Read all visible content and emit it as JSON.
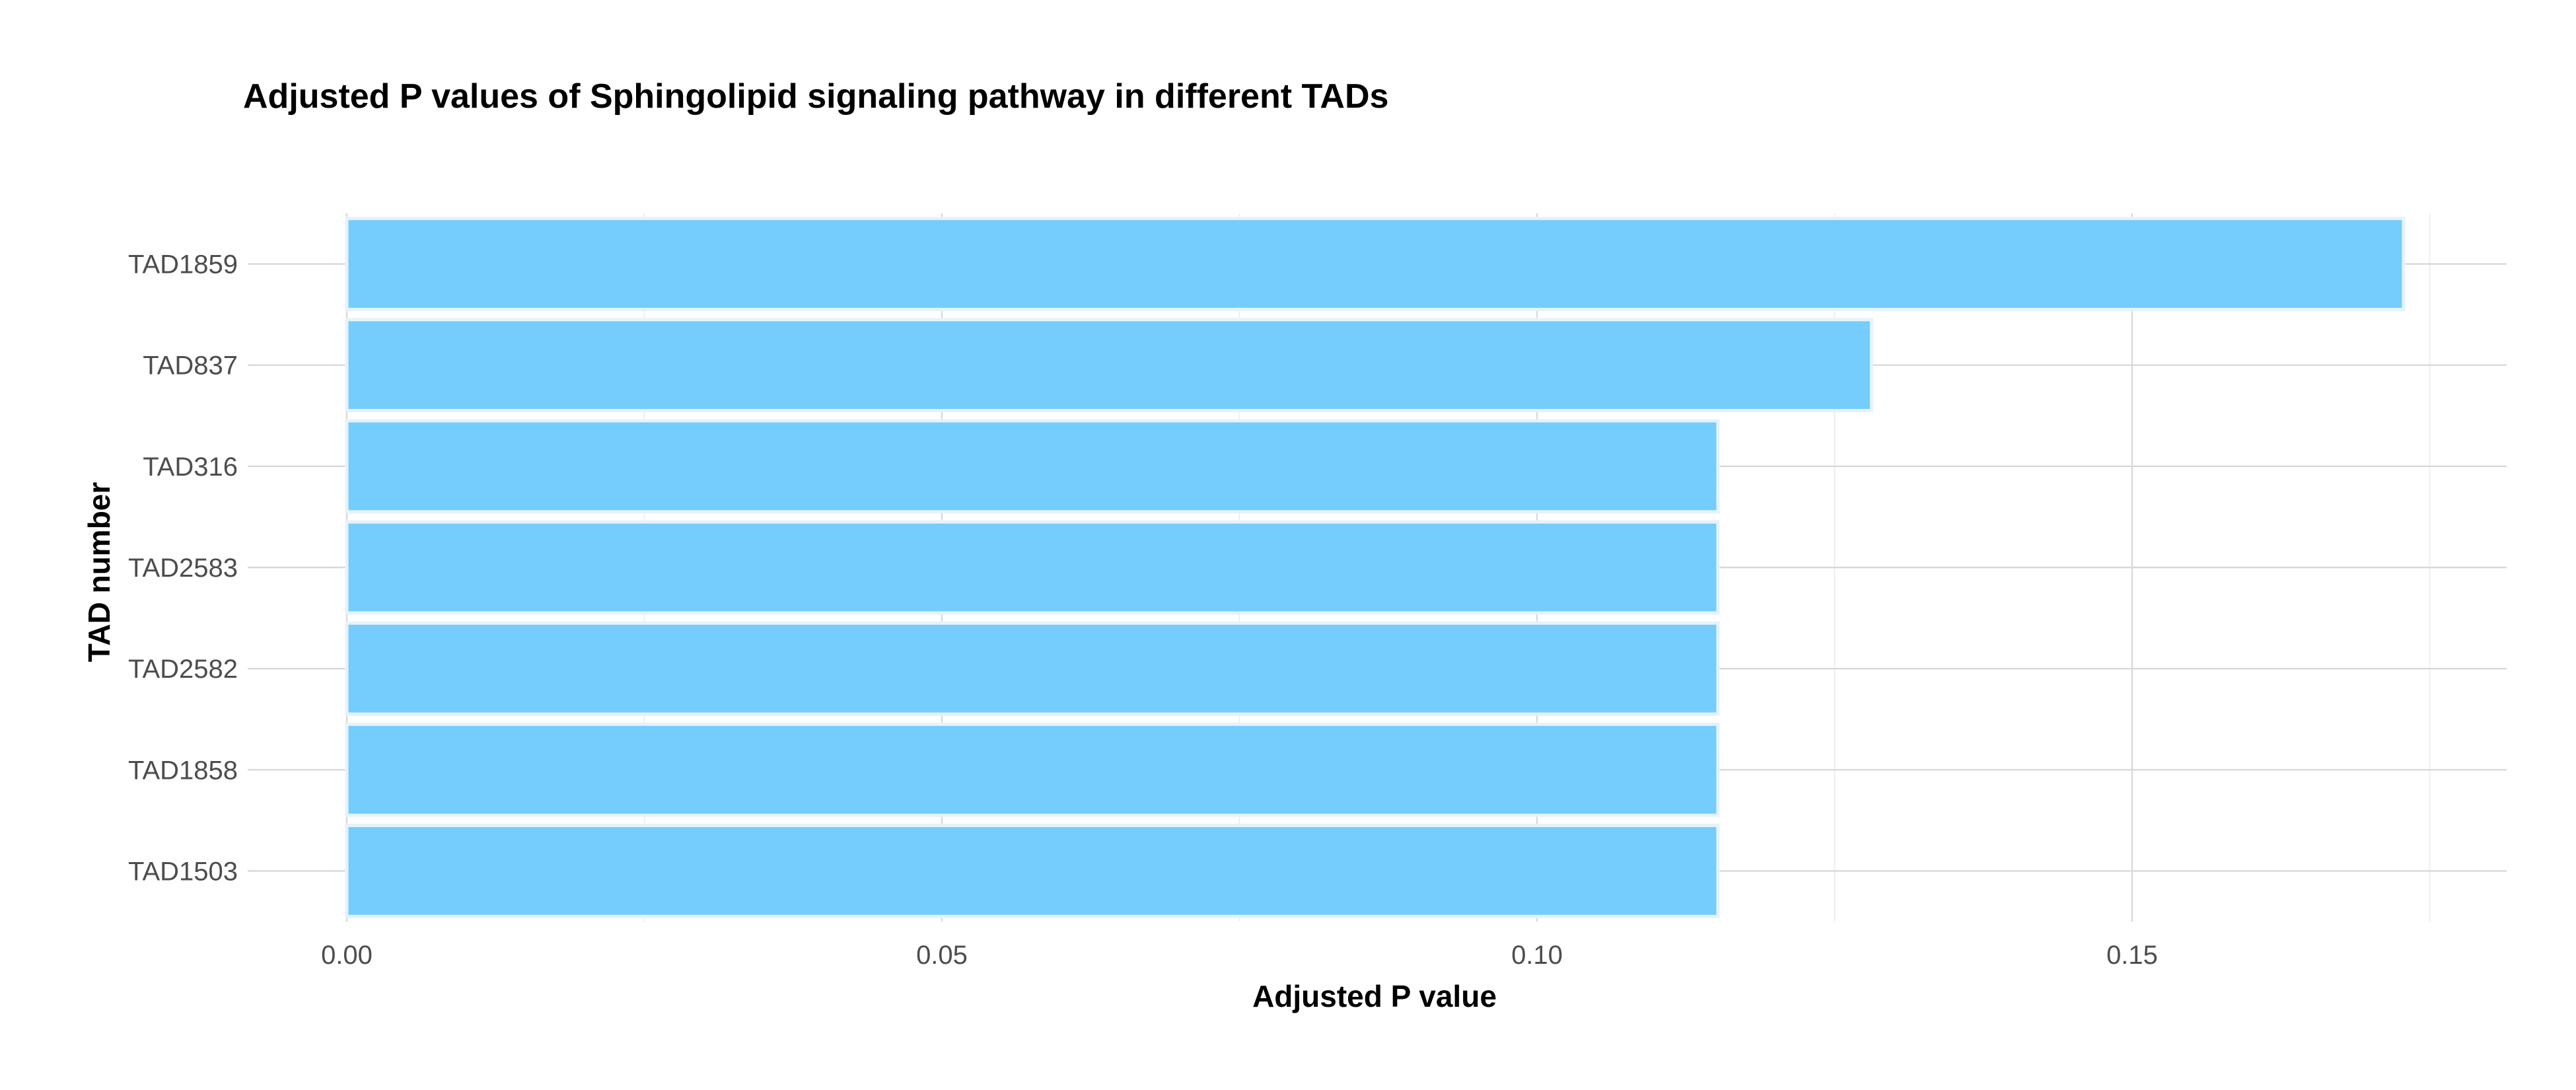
{
  "chart_data": {
    "type": "bar",
    "orientation": "horizontal",
    "title": "Adjusted P values of Sphingolipid signaling pathway in different TADs",
    "xlabel": "Adjusted P value",
    "ylabel": "TAD number",
    "categories": [
      "TAD1859",
      "TAD837",
      "TAD316",
      "TAD2583",
      "TAD2582",
      "TAD1858",
      "TAD1503"
    ],
    "values": [
      0.1728,
      0.1281,
      0.1152,
      0.1152,
      0.1152,
      0.1152,
      0.1152
    ],
    "xlim": [
      0,
      0.175
    ],
    "x_ticks": [
      0.0,
      0.05,
      0.1,
      0.15
    ],
    "x_tick_labels": [
      "0.00",
      "0.05",
      "0.10",
      "0.15"
    ],
    "grid": true,
    "legend": "none",
    "colors": {
      "bar_fill": "#74cdfc",
      "bar_outline": "#e6f2fc"
    }
  }
}
